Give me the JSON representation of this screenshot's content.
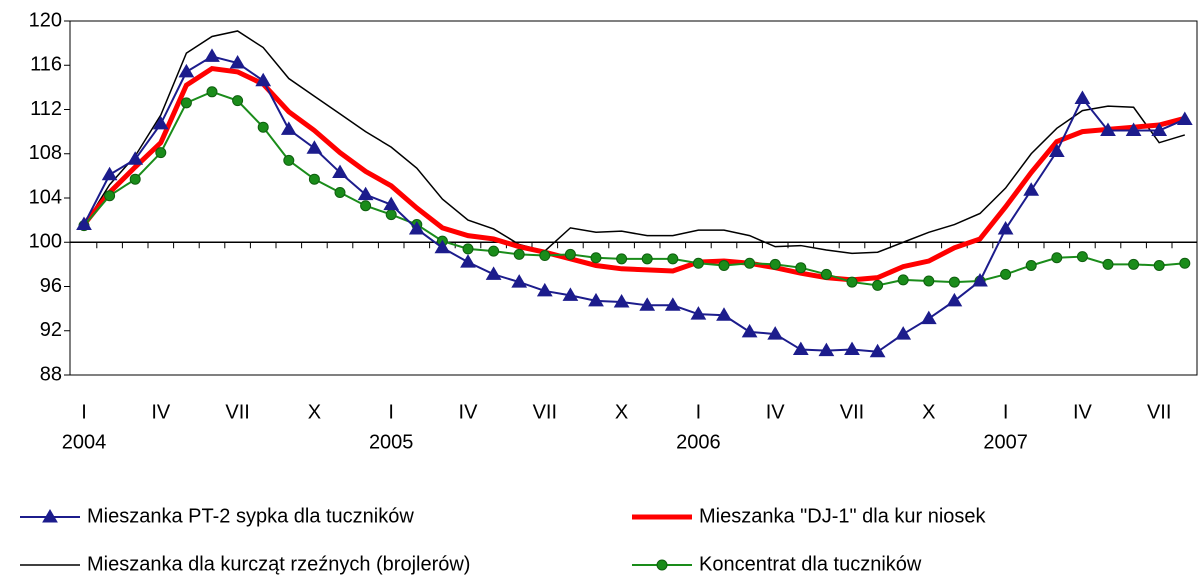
{
  "chart_data": {
    "type": "line",
    "categories": [
      "I",
      null,
      null,
      "IV",
      null,
      null,
      "VII",
      null,
      null,
      "X",
      null,
      null,
      "I",
      null,
      null,
      "IV",
      null,
      null,
      "VII",
      null,
      null,
      "X",
      null,
      null,
      "I",
      null,
      null,
      "IV",
      null,
      null,
      "VII",
      null,
      null,
      "X",
      null,
      null,
      "I",
      null,
      null,
      "IV",
      null,
      null,
      "VII",
      null
    ],
    "year_labels": [
      "2004",
      "2005",
      "2006",
      "2007"
    ],
    "ylim": [
      88,
      120
    ],
    "yticks": [
      88,
      92,
      96,
      100,
      104,
      108,
      112,
      116,
      120
    ],
    "x_axis_at": 100,
    "grid": false,
    "series": [
      {
        "name": "Mieszanka PT-2 sypka dla tuczników",
        "color": "#1c1c8c",
        "marker": "triangle",
        "values": [
          101.6,
          106.1,
          107.5,
          110.7,
          115.4,
          116.8,
          116.2,
          114.6,
          110.2,
          108.5,
          106.3,
          104.3,
          103.4,
          101.2,
          99.5,
          98.2,
          97.1,
          96.4,
          95.6,
          95.2,
          94.7,
          94.6,
          94.3,
          94.3,
          93.5,
          93.4,
          91.9,
          91.7,
          90.3,
          90.2,
          90.3,
          90.1,
          91.7,
          93.1,
          94.7,
          96.5,
          101.2,
          104.7,
          108.2,
          113.0,
          110.1,
          110.1,
          110.1,
          111.1
        ]
      },
      {
        "name": "Mieszanka \"DJ-1\" dla kur niosek",
        "color": "#ff0000",
        "marker": "none",
        "values": [
          101.6,
          104.5,
          106.8,
          109.0,
          114.2,
          115.7,
          115.4,
          114.3,
          111.8,
          110.1,
          108.1,
          106.4,
          105.1,
          103.1,
          101.3,
          100.6,
          100.3,
          99.6,
          99.1,
          98.5,
          97.9,
          97.6,
          97.5,
          97.4,
          98.2,
          98.3,
          98.1,
          97.7,
          97.2,
          96.8,
          96.6,
          96.8,
          97.8,
          98.3,
          99.5,
          100.3,
          103.2,
          106.3,
          109.1,
          110.0,
          110.2,
          110.4,
          110.6,
          111.2
        ]
      },
      {
        "name": "Mieszanka dla kurcząt rzeźnych (brojlerów)",
        "color": "#000000",
        "marker": "none",
        "values": [
          101.5,
          105.2,
          107.8,
          111.5,
          117.1,
          118.6,
          119.1,
          117.6,
          114.8,
          113.2,
          111.6,
          110.0,
          108.6,
          106.7,
          103.9,
          102.0,
          101.2,
          99.8,
          99.2,
          101.3,
          100.9,
          101.0,
          100.6,
          100.6,
          101.1,
          101.1,
          100.6,
          99.6,
          99.7,
          99.3,
          99.0,
          99.1,
          100.0,
          100.9,
          101.6,
          102.6,
          104.9,
          108.0,
          110.3,
          111.9,
          112.3,
          112.2,
          109.0,
          109.7
        ]
      },
      {
        "name": "Koncentrat dla tuczników",
        "color": "#1a8c1a",
        "marker": "circle",
        "values": [
          101.5,
          104.2,
          105.7,
          108.1,
          112.6,
          113.6,
          112.8,
          110.4,
          107.4,
          105.7,
          104.5,
          103.3,
          102.5,
          101.6,
          100.1,
          99.4,
          99.2,
          98.9,
          98.8,
          98.9,
          98.6,
          98.5,
          98.5,
          98.5,
          98.1,
          97.9,
          98.1,
          98.0,
          97.7,
          97.1,
          96.4,
          96.1,
          96.6,
          96.5,
          96.4,
          96.5,
          97.1,
          97.9,
          98.6,
          98.7,
          98.0,
          98.0,
          97.9,
          98.1
        ]
      }
    ]
  }
}
